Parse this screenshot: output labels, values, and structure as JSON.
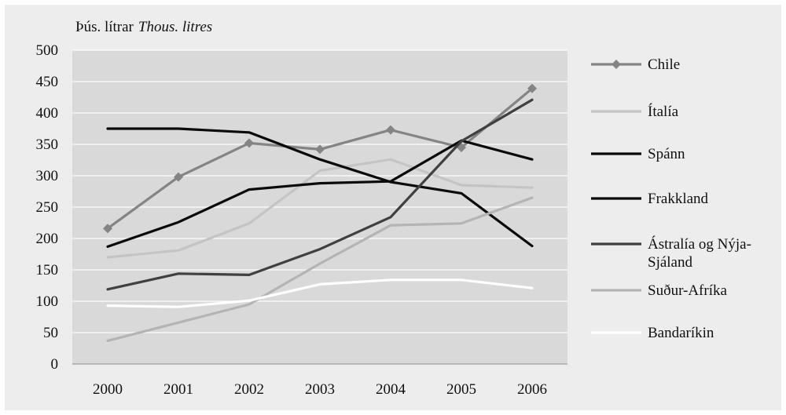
{
  "unit_label": {
    "is": "Þús. lítrar",
    "en": "Thous. litres"
  },
  "chart_data": {
    "type": "line",
    "title": "",
    "xlabel": "",
    "ylabel": "Þús. lítrar  Thous. litres",
    "categories": [
      "2000",
      "2001",
      "2002",
      "2003",
      "2004",
      "2005",
      "2006"
    ],
    "ylim": [
      0,
      500
    ],
    "yticks": [
      0,
      50,
      100,
      150,
      200,
      250,
      300,
      350,
      400,
      450,
      500
    ],
    "grid": true,
    "legend_position": "right",
    "series": [
      {
        "name": "Chile",
        "color": "#848484",
        "marker": "diamond",
        "values": [
          216,
          298,
          352,
          342,
          373,
          345,
          439
        ]
      },
      {
        "name": "Ítalía",
        "color": "#c4c4c4",
        "marker": "none",
        "values": [
          170,
          181,
          224,
          308,
          326,
          285,
          281
        ]
      },
      {
        "name": "Spánn",
        "color": "#0a0a0a",
        "marker": "none",
        "values": [
          375,
          375,
          369,
          326,
          290,
          272,
          188
        ]
      },
      {
        "name": "Frakkland",
        "color": "#0a0a0a",
        "marker": "none",
        "values": [
          187,
          226,
          278,
          288,
          291,
          356,
          326
        ]
      },
      {
        "name": "Ástralía og Nýja-Sjáland",
        "color": "#404040",
        "marker": "none",
        "values": [
          119,
          144,
          142,
          183,
          234,
          355,
          421
        ]
      },
      {
        "name": "Suður-Afríka",
        "color": "#b4b4b4",
        "marker": "none",
        "values": [
          37,
          66,
          95,
          160,
          221,
          224,
          265
        ]
      },
      {
        "name": "Bandaríkin",
        "color": "#ffffff",
        "marker": "none",
        "values": [
          93,
          91,
          101,
          127,
          134,
          134,
          121
        ]
      }
    ]
  }
}
